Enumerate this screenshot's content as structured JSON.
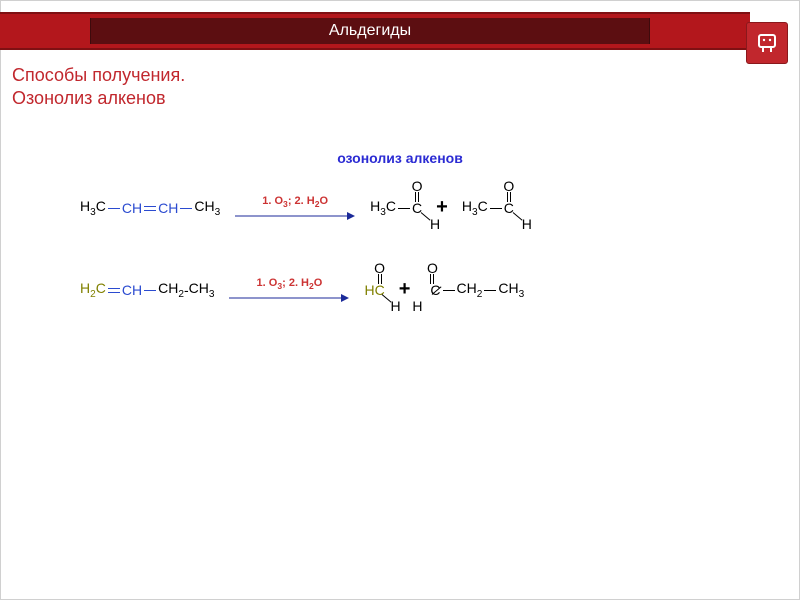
{
  "colors": {
    "header_outer": "#b3171c",
    "header_inner": "#5c0e11",
    "header_border": "#7f1013",
    "logo_bg": "#c1272d",
    "logo_fg": "#ffffff",
    "subtitle": "#c1272d",
    "dia_title": "#2b2bd3",
    "condition": "#cc3333",
    "arrow": "#1b2a99",
    "black": "#000000",
    "bond_blue": "#2b4bd0",
    "olive": "#808000",
    "plus": "#000000"
  },
  "fonts": {
    "subtitle_size": 18,
    "dia_title_size": 14,
    "formula_size": 14,
    "cond_size": 11
  },
  "header": {
    "title": "Альдегиды"
  },
  "subtitle": {
    "line1": "Способы получения.",
    "line2": "Озонолиз алкенов"
  },
  "diagram": {
    "title": "озонолиз алкенов",
    "condition_prefix": "1. O",
    "condition_sub1": "3",
    "condition_mid": "; 2. H",
    "condition_sub2": "2",
    "condition_suffix": "O",
    "r1_reactant": {
      "p1": "H",
      "p1_sub": "3",
      "p1b": "C",
      "p2": "CH",
      "p3": "CH",
      "p4": "CH",
      "p4_sub": "3"
    },
    "r2_reactant": {
      "p1": "H",
      "p1_sub": "2",
      "p1b": "C",
      "p2": "CH",
      "p3": "CH",
      "p3_sub": "2",
      "dash": " - ",
      "p4": "CH",
      "p4_sub": "3"
    },
    "product_h3c": {
      "pre": "H",
      "pre_sub": "3",
      "preb": "C",
      "c": "C",
      "o": "O",
      "h": "H"
    },
    "product_hc": {
      "c_left": "HC",
      "o": "O",
      "h": "H"
    },
    "product_c": {
      "c": "C",
      "o": "O",
      "h": "H",
      "post1": "CH",
      "post1_sub": "2",
      "post2": "CH",
      "post2_sub": "3"
    },
    "plus": "+"
  }
}
